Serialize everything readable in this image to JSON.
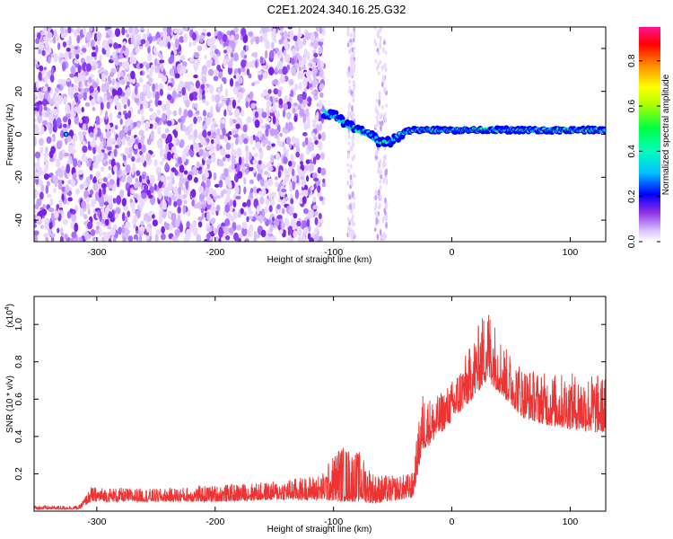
{
  "title": "C2E1.2024.340.16.25.G32",
  "chart_data": [
    {
      "type": "heatmap",
      "xlabel": "Height of straight line (km)",
      "ylabel": "Frequency (Hz)",
      "xlim": [
        -353,
        130
      ],
      "ylim": [
        -50,
        50
      ],
      "x_ticks": [
        -300,
        -200,
        -100,
        0,
        100
      ],
      "y_ticks": [
        -40,
        -20,
        0,
        20,
        40
      ],
      "colorbar": {
        "label": "Normalized spectral amplitude",
        "range": [
          0.0,
          0.95
        ],
        "ticks": [
          "0.0",
          "0.2",
          "0.4",
          "0.6",
          "0.8"
        ],
        "tick_values": [
          0.0,
          0.2,
          0.4,
          0.6,
          0.8
        ],
        "colors": [
          "#ffffff",
          "#d9c4ff",
          "#8a2be2",
          "#0000ff",
          "#00bfff",
          "#00ff7f",
          "#b0ff00",
          "#ffff00",
          "#ff8000",
          "#ff0000",
          "#ff1493"
        ]
      },
      "regions": {
        "noise_x": [
          -353,
          -108
        ],
        "gap_x": [
          -108,
          -58
        ],
        "signal_track": [
          [
            -108,
            10
          ],
          [
            -100,
            9
          ],
          [
            -90,
            5
          ],
          [
            -80,
            2
          ],
          [
            -70,
            0
          ],
          [
            -60,
            -4
          ],
          [
            -50,
            -3
          ],
          [
            -40,
            1
          ],
          [
            -30,
            2
          ],
          [
            0,
            2
          ],
          [
            40,
            2
          ],
          [
            80,
            2
          ],
          [
            130,
            2
          ]
        ]
      }
    },
    {
      "type": "line",
      "xlabel": "Height of straight line (km)",
      "ylabel": "SNR (10 * v/v)",
      "ylabel_multiplier": "(x10",
      "ylabel_exponent": "4",
      "ylabel_close": ")",
      "xlim": [
        -353,
        130
      ],
      "ylim": [
        0,
        1.15
      ],
      "x_ticks": [
        -300,
        -200,
        -100,
        0,
        100
      ],
      "y_ticks": [
        0.2,
        0.4,
        0.6,
        0.8,
        1.0
      ],
      "color": "#ee3333",
      "envelope": [
        {
          "x": -353,
          "base": 0.01,
          "amp": 0.03
        },
        {
          "x": -315,
          "base": 0.01,
          "amp": 0.03
        },
        {
          "x": -305,
          "base": 0.05,
          "amp": 0.13
        },
        {
          "x": -250,
          "base": 0.05,
          "amp": 0.12
        },
        {
          "x": -200,
          "base": 0.05,
          "amp": 0.14
        },
        {
          "x": -150,
          "base": 0.06,
          "amp": 0.16
        },
        {
          "x": -110,
          "base": 0.06,
          "amp": 0.2
        },
        {
          "x": -95,
          "base": 0.05,
          "amp": 0.36
        },
        {
          "x": -78,
          "base": 0.05,
          "amp": 0.32
        },
        {
          "x": -65,
          "base": 0.04,
          "amp": 0.2
        },
        {
          "x": -45,
          "base": 0.06,
          "amp": 0.19
        },
        {
          "x": -33,
          "base": 0.07,
          "amp": 0.21
        },
        {
          "x": -25,
          "base": 0.32,
          "amp": 0.64
        },
        {
          "x": -15,
          "base": 0.38,
          "amp": 0.6
        },
        {
          "x": 0,
          "base": 0.48,
          "amp": 0.7
        },
        {
          "x": 15,
          "base": 0.58,
          "amp": 0.88
        },
        {
          "x": 30,
          "base": 0.7,
          "amp": 1.12
        },
        {
          "x": 45,
          "base": 0.6,
          "amp": 0.88
        },
        {
          "x": 60,
          "base": 0.5,
          "amp": 0.78
        },
        {
          "x": 80,
          "base": 0.46,
          "amp": 0.74
        },
        {
          "x": 100,
          "base": 0.44,
          "amp": 0.74
        },
        {
          "x": 120,
          "base": 0.42,
          "amp": 0.74
        },
        {
          "x": 130,
          "base": 0.42,
          "amp": 0.72
        }
      ]
    }
  ]
}
